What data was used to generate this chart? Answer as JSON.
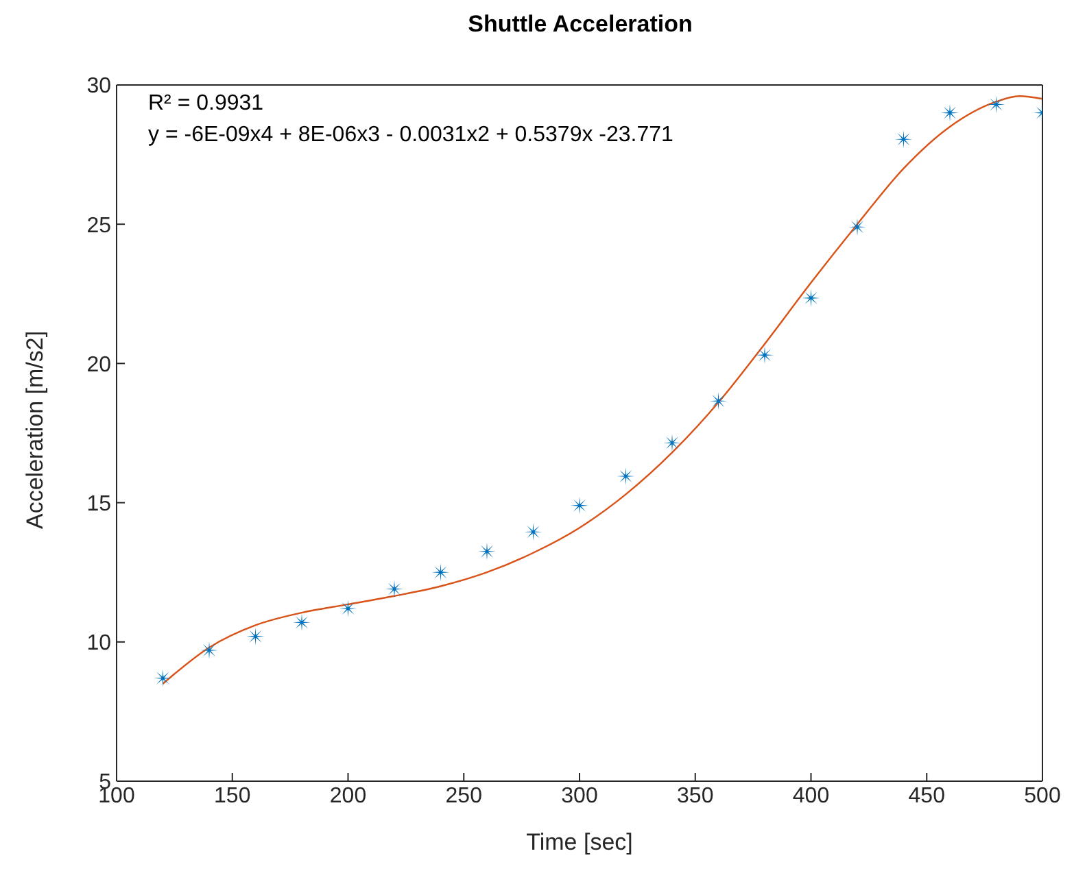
{
  "chart_data": {
    "type": "scatter",
    "title": "Shuttle Acceleration",
    "xlabel": "Time [sec]",
    "ylabel": "Acceleration [m/s2]",
    "annotations": [
      "R² = 0.9931",
      "y = -6E-09x4 + 8E-06x3 - 0.0031x2 + 0.5379x -23.771"
    ],
    "x": [
      120,
      140,
      160,
      180,
      200,
      220,
      240,
      260,
      280,
      300,
      320,
      340,
      360,
      380,
      400,
      420,
      440,
      460,
      480,
      500
    ],
    "series": [
      {
        "marker": "star",
        "color": "#0072bd",
        "values": [
          8.7,
          9.7,
          10.2,
          10.7,
          11.2,
          11.9,
          12.5,
          13.25,
          13.95,
          14.9,
          15.95,
          17.15,
          18.65,
          20.3,
          22.35,
          24.9,
          28.05,
          29.0,
          29.3,
          29.0
        ]
      },
      {
        "type": "line",
        "marker": "none",
        "color": "#d95319",
        "x": [
          120,
          140,
          160,
          180,
          200,
          220,
          240,
          260,
          280,
          300,
          320,
          340,
          360,
          380,
          400,
          420,
          440,
          460,
          480,
          490,
          500
        ],
        "values": [
          8.5,
          9.8,
          10.6,
          11.05,
          11.35,
          11.65,
          12.0,
          12.5,
          13.2,
          14.1,
          15.3,
          16.8,
          18.6,
          20.7,
          22.9,
          25.0,
          27.0,
          28.5,
          29.4,
          29.6,
          29.5
        ]
      }
    ],
    "xlim": [
      100,
      500
    ],
    "xticks": [
      100,
      150,
      200,
      250,
      300,
      350,
      400,
      450,
      500
    ],
    "ylim": [
      5,
      30
    ],
    "yticks": [
      5,
      10,
      15,
      20,
      25,
      30
    ],
    "grid": false,
    "legend": false
  }
}
